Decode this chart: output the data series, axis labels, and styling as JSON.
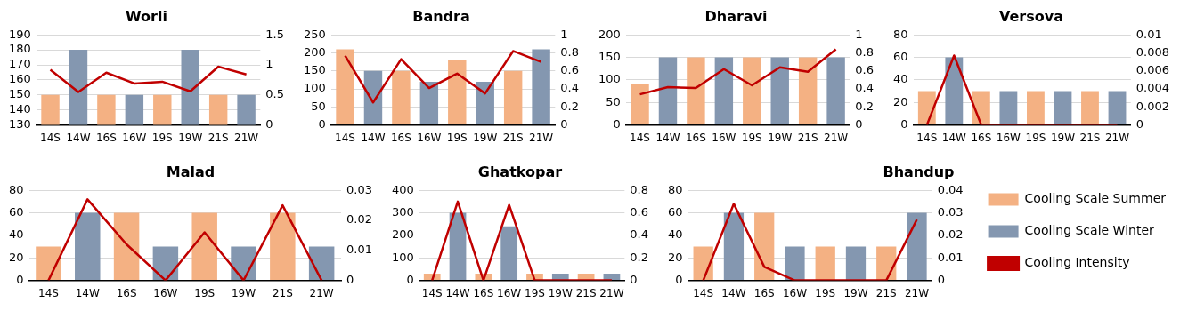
{
  "chart_data": [
    {
      "type": "bar",
      "title": "Worli",
      "categories": [
        "14S",
        "14W",
        "16S",
        "16W",
        "19S",
        "19W",
        "21S",
        "21W"
      ],
      "series": [
        {
          "color": "#f4b183",
          "values": [
            150,
            null,
            150,
            null,
            150,
            null,
            150,
            null
          ]
        },
        {
          "color": "#8497b0",
          "values": [
            null,
            180,
            null,
            150,
            null,
            180,
            null,
            150
          ]
        },
        {
          "type": "line",
          "axis": "y2",
          "color": "#c00000",
          "values": [
            0.92,
            0.55,
            0.87,
            0.69,
            0.72,
            0.56,
            0.97,
            0.84
          ]
        }
      ],
      "ylim": [
        130,
        190
      ],
      "yticks": [
        130,
        140,
        150,
        160,
        170,
        180,
        190
      ],
      "y2lim": [
        0,
        1.5
      ],
      "y2ticks": [
        0,
        0.5,
        1,
        1.5
      ],
      "grid": "y",
      "marker": "none",
      "legend": false
    },
    {
      "type": "bar",
      "title": "Bandra",
      "categories": [
        "14S",
        "14W",
        "16S",
        "16W",
        "19S",
        "19W",
        "21S",
        "21W"
      ],
      "series": [
        {
          "color": "#f4b183",
          "values": [
            210,
            null,
            150,
            null,
            180,
            null,
            150,
            null
          ]
        },
        {
          "color": "#8497b0",
          "values": [
            null,
            150,
            null,
            120,
            null,
            120,
            null,
            210
          ]
        },
        {
          "type": "line",
          "axis": "y2",
          "color": "#c00000",
          "values": [
            0.77,
            0.25,
            0.73,
            0.41,
            0.57,
            0.35,
            0.82,
            0.7
          ]
        }
      ],
      "ylim": [
        0,
        250
      ],
      "yticks": [
        0,
        50,
        100,
        150,
        200,
        250
      ],
      "y2lim": [
        0,
        1
      ],
      "y2ticks": [
        0,
        0.2,
        0.4,
        0.6,
        0.8,
        1
      ],
      "grid": "y",
      "marker": "none",
      "legend": false
    },
    {
      "type": "bar",
      "title": "Dharavi",
      "categories": [
        "14S",
        "14W",
        "16S",
        "16W",
        "19S",
        "19W",
        "21S",
        "21W"
      ],
      "series": [
        {
          "color": "#f4b183",
          "values": [
            90,
            null,
            150,
            null,
            150,
            null,
            150,
            null
          ]
        },
        {
          "color": "#8497b0",
          "values": [
            null,
            150,
            null,
            150,
            null,
            150,
            null,
            150
          ]
        },
        {
          "type": "line",
          "axis": "y2",
          "color": "#c00000",
          "values": [
            0.34,
            0.42,
            0.41,
            0.62,
            0.44,
            0.64,
            0.59,
            0.84
          ]
        }
      ],
      "ylim": [
        0,
        200
      ],
      "yticks": [
        0,
        50,
        100,
        150,
        200
      ],
      "y2lim": [
        0,
        1
      ],
      "y2ticks": [
        0,
        0.2,
        0.4,
        0.6,
        0.8,
        1
      ],
      "grid": "y",
      "marker": "none",
      "legend": false
    },
    {
      "type": "bar",
      "title": "Versova",
      "categories": [
        "14S",
        "14W",
        "16S",
        "16W",
        "19S",
        "19W",
        "21S",
        "21W"
      ],
      "series": [
        {
          "color": "#f4b183",
          "values": [
            30,
            null,
            30,
            null,
            30,
            null,
            30,
            null
          ]
        },
        {
          "color": "#8497b0",
          "values": [
            null,
            60,
            null,
            30,
            null,
            30,
            null,
            30
          ]
        },
        {
          "type": "line",
          "axis": "y2",
          "color": "#c00000",
          "values": [
            0,
            0.0077,
            0,
            0,
            0,
            0,
            0,
            0
          ]
        }
      ],
      "ylim": [
        0,
        80
      ],
      "yticks": [
        0,
        20,
        40,
        60,
        80
      ],
      "y2lim": [
        0,
        0.01
      ],
      "y2ticks": [
        0,
        0.002,
        0.004,
        0.006,
        0.008,
        0.01
      ],
      "grid": "y",
      "marker": "none",
      "legend": false
    },
    {
      "type": "bar",
      "title": "Malad",
      "categories": [
        "14S",
        "14W",
        "16S",
        "16W",
        "19S",
        "19W",
        "21S",
        "21W"
      ],
      "series": [
        {
          "color": "#f4b183",
          "values": [
            30,
            null,
            60,
            null,
            60,
            null,
            60,
            null
          ]
        },
        {
          "color": "#8497b0",
          "values": [
            null,
            60,
            null,
            30,
            null,
            30,
            null,
            30
          ]
        },
        {
          "type": "line",
          "axis": "y2",
          "color": "#c00000",
          "values": [
            0,
            0.027,
            0.012,
            0,
            0.016,
            0,
            0.025,
            0
          ]
        }
      ],
      "ylim": [
        0,
        80
      ],
      "yticks": [
        0,
        20,
        40,
        60,
        80
      ],
      "y2lim": [
        0,
        0.03
      ],
      "y2ticks": [
        0,
        0.01,
        0.02,
        0.03
      ],
      "grid": "y",
      "marker": "none",
      "legend": false
    },
    {
      "type": "bar",
      "title": "Ghatkopar",
      "categories": [
        "14S",
        "14W",
        "16S",
        "16W",
        "19S",
        "19W",
        "21S",
        "21W"
      ],
      "series": [
        {
          "color": "#f4b183",
          "values": [
            30,
            null,
            30,
            null,
            30,
            null,
            30,
            null
          ]
        },
        {
          "color": "#8497b0",
          "values": [
            null,
            300,
            null,
            240,
            null,
            30,
            null,
            30
          ]
        },
        {
          "type": "line",
          "axis": "y2",
          "color": "#c00000",
          "values": [
            0,
            0.7,
            0,
            0.67,
            0,
            0,
            0,
            0
          ]
        }
      ],
      "ylim": [
        0,
        400
      ],
      "yticks": [
        0,
        100,
        200,
        300,
        400
      ],
      "y2lim": [
        0,
        0.8
      ],
      "y2ticks": [
        0,
        0.2,
        0.4,
        0.6,
        0.8
      ],
      "grid": "y",
      "marker": "none",
      "legend": false
    },
    {
      "type": "bar",
      "title": "Bhandup",
      "categories": [
        "14S",
        "14W",
        "16S",
        "16W",
        "19S",
        "19W",
        "21S",
        "21W"
      ],
      "series": [
        {
          "name": "Cooling Scale Summer",
          "color": "#f4b183",
          "values": [
            30,
            null,
            60,
            null,
            30,
            null,
            30,
            null
          ]
        },
        {
          "name": "Cooling Scale Winter",
          "color": "#8497b0",
          "values": [
            null,
            60,
            null,
            30,
            null,
            30,
            null,
            60
          ]
        },
        {
          "type": "line",
          "name": "Cooling Intensity",
          "axis": "y2",
          "color": "#c00000",
          "values": [
            0,
            0.034,
            0.006,
            0,
            0,
            0,
            0,
            0.027
          ]
        }
      ],
      "ylim": [
        0,
        80
      ],
      "yticks": [
        0,
        20,
        40,
        60,
        80
      ],
      "y2lim": [
        0,
        0.04
      ],
      "y2ticks": [
        0,
        0.01,
        0.02,
        0.03,
        0.04
      ],
      "grid": "y",
      "marker": "none",
      "legend": "right"
    }
  ]
}
